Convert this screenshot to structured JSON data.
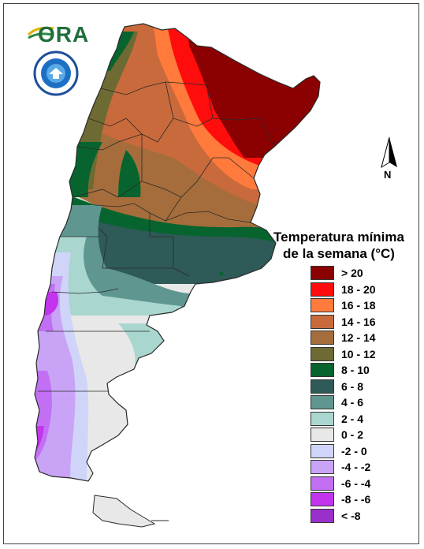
{
  "header": {
    "logo_text": "ORA",
    "seal_name": "Servicio Meteorológico Nacional — Argentina"
  },
  "north_arrow": {
    "label": "N"
  },
  "legend": {
    "title_line1": "Temperatura mínima",
    "title_line2": "de la semana (°C)",
    "items": [
      {
        "label": "> 20",
        "color": "#8b0000"
      },
      {
        "label": "18 - 20",
        "color": "#ff0d0d"
      },
      {
        "label": "16 - 18",
        "color": "#ff7a3b"
      },
      {
        "label": "14 - 16",
        "color": "#c96a3c"
      },
      {
        "label": "12 - 14",
        "color": "#a56d3b"
      },
      {
        "label": "10 - 12",
        "color": "#6e6a33"
      },
      {
        "label": "8 - 10",
        "color": "#07642e"
      },
      {
        "label": "6 - 8",
        "color": "#2e5a57"
      },
      {
        "label": "4 - 6",
        "color": "#5f9690"
      },
      {
        "label": "2 - 4",
        "color": "#a9d6cf"
      },
      {
        "label": "0 - 2",
        "color": "#e8e8e8"
      },
      {
        "label": "-2 - 0",
        "color": "#d0d4f9"
      },
      {
        "label": "-4 - -2",
        "color": "#c9a4f6"
      },
      {
        "label": "-6 - -4",
        "color": "#c26ff4"
      },
      {
        "label": "-8 - -6",
        "color": "#c334ef"
      },
      {
        "label": "< -8",
        "color": "#9a30cc"
      }
    ]
  },
  "map_colors": {
    "outside": "#ffffff",
    "border": "#2a2a2a"
  }
}
